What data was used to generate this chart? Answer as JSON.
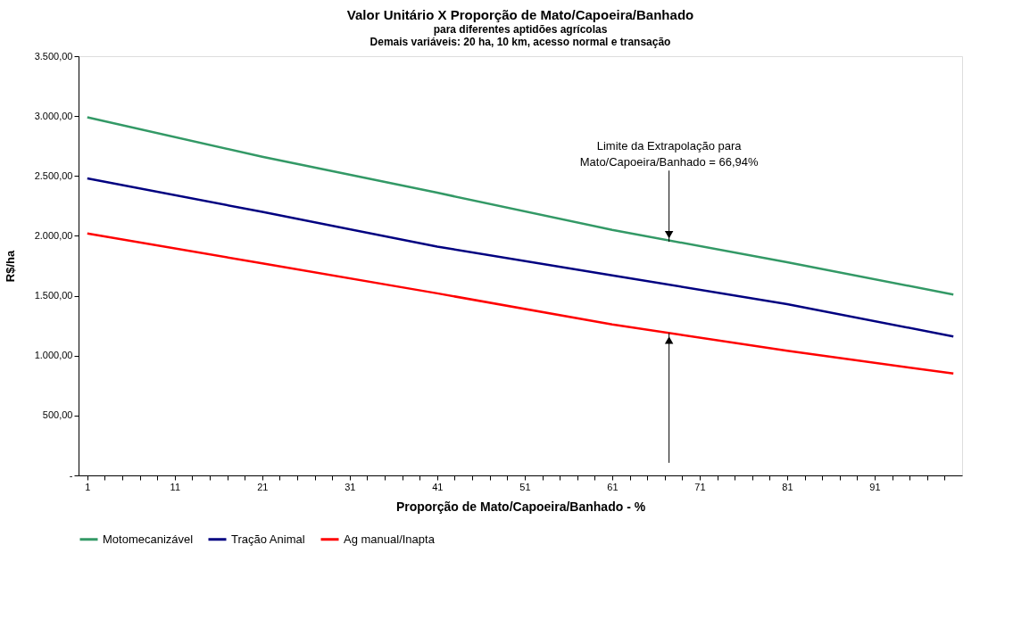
{
  "chart_data": {
    "type": "line",
    "title": "Valor Unitário X Proporção de Mato/Capoeira/Banhado",
    "subtitle": [
      "para diferentes aptidões agrícolas",
      "Demais variáveis: 20 ha, 10 km, acesso normal e transação"
    ],
    "xlabel": "Proporção de Mato/Capoeira/Banhado - %",
    "ylabel": "R$/ha",
    "x": [
      1,
      21,
      41,
      61,
      81,
      100
    ],
    "series": [
      {
        "name": "Motomecanizável",
        "color": "#339966",
        "values": [
          2990,
          2660,
          2360,
          2050,
          1780,
          1510
        ]
      },
      {
        "name": "Tração Animal",
        "color": "#000080",
        "values": [
          2480,
          2200,
          1910,
          1670,
          1430,
          1160
        ]
      },
      {
        "name": "Ag manual/Inapta",
        "color": "#ff0000",
        "values": [
          2020,
          1770,
          1520,
          1260,
          1040,
          850
        ]
      }
    ],
    "xlim": [
      0,
      101
    ],
    "xticks": [
      1,
      {
        "value": 3,
        "label": null
      },
      {
        "value": 5,
        "label": null
      },
      {
        "value": 7,
        "label": null
      },
      {
        "value": 9,
        "label": null
      },
      11,
      {
        "value": 13,
        "label": null
      },
      {
        "value": 15,
        "label": null
      },
      {
        "value": 17,
        "label": null
      },
      {
        "value": 19,
        "label": null
      },
      21,
      {
        "value": 23,
        "label": null
      },
      {
        "value": 25,
        "label": null
      },
      {
        "value": 27,
        "label": null
      },
      {
        "value": 29,
        "label": null
      },
      31,
      {
        "value": 33,
        "label": null
      },
      {
        "value": 35,
        "label": null
      },
      {
        "value": 37,
        "label": null
      },
      {
        "value": 39,
        "label": null
      },
      41,
      {
        "value": 43,
        "label": null
      },
      {
        "value": 45,
        "label": null
      },
      {
        "value": 47,
        "label": null
      },
      {
        "value": 49,
        "label": null
      },
      51,
      {
        "value": 53,
        "label": null
      },
      {
        "value": 55,
        "label": null
      },
      {
        "value": 57,
        "label": null
      },
      {
        "value": 59,
        "label": null
      },
      61,
      {
        "value": 63,
        "label": null
      },
      {
        "value": 65,
        "label": null
      },
      {
        "value": 67,
        "label": null
      },
      {
        "value": 69,
        "label": null
      },
      71,
      {
        "value": 73,
        "label": null
      },
      {
        "value": 75,
        "label": null
      },
      {
        "value": 77,
        "label": null
      },
      {
        "value": 79,
        "label": null
      },
      81,
      {
        "value": 83,
        "label": null
      },
      {
        "value": 85,
        "label": null
      },
      {
        "value": 87,
        "label": null
      },
      {
        "value": 89,
        "label": null
      },
      91,
      {
        "value": 93,
        "label": null
      },
      {
        "value": 95,
        "label": null
      },
      {
        "value": 97,
        "label": null
      },
      {
        "value": 99,
        "label": null
      }
    ],
    "ylim": [
      0,
      3500
    ],
    "yticks": [
      {
        "value": 0,
        "label": "-"
      },
      {
        "value": 500,
        "label": "500,00"
      },
      {
        "value": 1000,
        "label": "1.000,00"
      },
      {
        "value": 1500,
        "label": "1.500,00"
      },
      {
        "value": 2000,
        "label": "2.000,00"
      },
      {
        "value": 2500,
        "label": "2.500,00"
      },
      {
        "value": 3000,
        "label": "3.000,00"
      },
      {
        "value": 3500,
        "label": "3.500,00"
      }
    ],
    "annotations": [
      {
        "text": "Limite da Extrapolação para\nMato/Capoeira/Banhado = 66,94%",
        "x": 67.5,
        "y": 1950
      }
    ],
    "grid": false,
    "legend": "bottom",
    "marker": "none",
    "line_style": "solid"
  }
}
